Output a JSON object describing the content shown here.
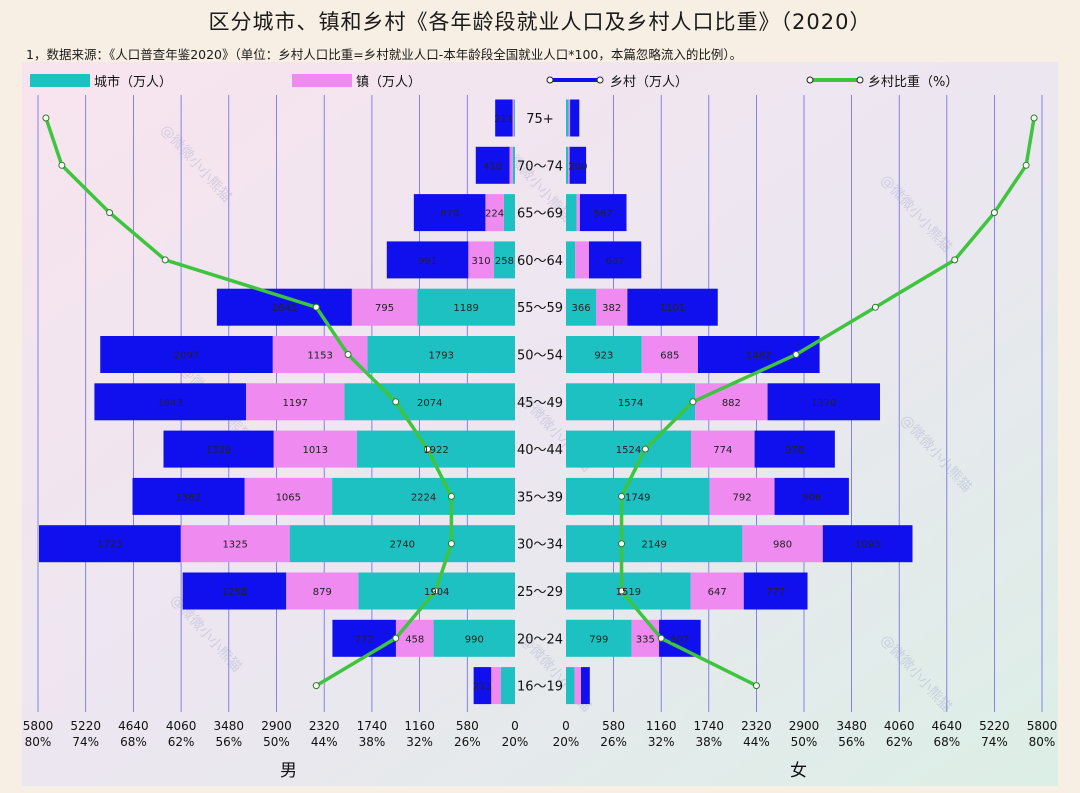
{
  "title": "区分城市、镇和乡村《各年龄段就业人口及乡村人口比重》（2020）",
  "note": "1，数据来源：《人口普查年鉴2020》（单位：乡村人口比重=乡村就业人口-本年龄段全国就业人口*100，本篇忽略流入的比例）。",
  "legend": {
    "city": "城市（万人）",
    "town": "镇（万人）",
    "rural": "乡村（万人）",
    "ratio": "乡村比重（%）"
  },
  "sex_labels": {
    "male": "男",
    "female": "女"
  },
  "watermark": "@微微小小熊猫",
  "colors": {
    "city": "#1ec1c1",
    "town": "#ee8af0",
    "rural": "#1010ee",
    "ratio": "#3ec43e",
    "grid": "#6a6ae6"
  },
  "chart_data": {
    "type": "bar",
    "subtype": "population-pyramid",
    "categories": [
      "75+",
      "70～74",
      "65～69",
      "60～64",
      "55～59",
      "50～54",
      "45～49",
      "40～44",
      "35～39",
      "30～34",
      "25～29",
      "20～24",
      "16～19"
    ],
    "male": {
      "city": [
        12,
        27,
        136,
        258,
        1189,
        1793,
        2074,
        1922,
        2224,
        2740,
        1904,
        990,
        170
      ],
      "town": [
        18,
        40,
        224,
        310,
        795,
        1153,
        1197,
        1013,
        1065,
        1325,
        879,
        458,
        120
      ],
      "rural": [
        211,
        410,
        870,
        991,
        1641,
        2097,
        1843,
        1339,
        1362,
        1723,
        1258,
        772,
        213
      ],
      "ratio": [
        79,
        77,
        71,
        64,
        45,
        41,
        35,
        31,
        28,
        28,
        30,
        35,
        45
      ]
    },
    "female": {
      "city": [
        30,
        25,
        130,
        111,
        366,
        923,
        1574,
        1524,
        1749,
        2149,
        1519,
        799,
        103
      ],
      "town": [
        20,
        20,
        40,
        169,
        382,
        685,
        882,
        774,
        792,
        980,
        647,
        335,
        80
      ],
      "rural": [
        112,
        200,
        567,
        637,
        1101,
        1482,
        1370,
        978,
        906,
        1093,
        777,
        507,
        107
      ],
      "ratio": [
        79,
        78,
        74,
        69,
        59,
        49,
        36,
        30,
        27,
        27,
        27,
        32,
        44
      ]
    },
    "x_ticks": [
      0,
      580,
      1160,
      1740,
      2320,
      2900,
      3480,
      4060,
      4640,
      5220,
      5800
    ],
    "ratio_ticks": [
      "20%",
      "26%",
      "32%",
      "38%",
      "44%",
      "50%",
      "56%",
      "62%",
      "68%",
      "74%",
      "80%"
    ],
    "xlim": [
      0,
      5800
    ],
    "ratio_lim": [
      20,
      80
    ],
    "grid": true,
    "legend_position": "top"
  }
}
